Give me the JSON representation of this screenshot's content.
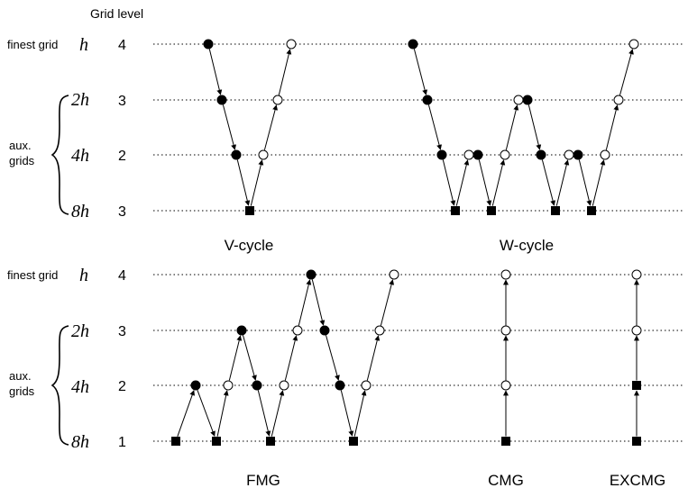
{
  "header": {
    "grid_level_label": "Grid level"
  },
  "labels": {
    "finest_grid": "finest grid",
    "aux_grids": [
      "aux.",
      "grids"
    ],
    "spacings": [
      "h",
      "2h",
      "4h",
      "8h"
    ],
    "levels": [
      "4",
      "3",
      "2",
      "1"
    ]
  },
  "cycles": [
    {
      "name": "V-cycle",
      "points": [
        [
          4,
          "pre"
        ],
        [
          3,
          "pre"
        ],
        [
          2,
          "pre"
        ],
        [
          1,
          "coarse"
        ],
        [
          2,
          "post"
        ],
        [
          3,
          "post"
        ],
        [
          4,
          "post"
        ]
      ]
    },
    {
      "name": "W-cycle",
      "points": [
        [
          4,
          "pre"
        ],
        [
          3,
          "pre"
        ],
        [
          2,
          "pre"
        ],
        [
          1,
          "coarse"
        ],
        [
          2,
          "post"
        ],
        [
          2,
          "pre"
        ],
        [
          1,
          "coarse"
        ],
        [
          2,
          "post"
        ],
        [
          3,
          "post"
        ],
        [
          3,
          "pre"
        ],
        [
          2,
          "pre"
        ],
        [
          1,
          "coarse"
        ],
        [
          2,
          "post"
        ],
        [
          2,
          "pre"
        ],
        [
          1,
          "coarse"
        ],
        [
          2,
          "post"
        ],
        [
          3,
          "post"
        ],
        [
          4,
          "post"
        ]
      ]
    },
    {
      "name": "FMG",
      "points": [
        [
          1,
          "coarse"
        ],
        [
          2,
          "pre"
        ],
        [
          1,
          "coarse"
        ],
        [
          2,
          "post"
        ],
        [
          3,
          "pre"
        ],
        [
          2,
          "pre"
        ],
        [
          1,
          "coarse"
        ],
        [
          2,
          "post"
        ],
        [
          3,
          "post"
        ],
        [
          4,
          "pre"
        ],
        [
          3,
          "pre"
        ],
        [
          2,
          "pre"
        ],
        [
          1,
          "coarse"
        ],
        [
          2,
          "post"
        ],
        [
          3,
          "post"
        ],
        [
          4,
          "post"
        ]
      ]
    },
    {
      "name": "CMG",
      "points": [
        [
          1,
          "coarse"
        ],
        [
          2,
          "post"
        ],
        [
          3,
          "post"
        ],
        [
          4,
          "post"
        ]
      ]
    },
    {
      "name": "EXCMG",
      "points": [
        [
          1,
          "coarse"
        ],
        [
          2,
          "coarse"
        ],
        [
          3,
          "post"
        ],
        [
          4,
          "post"
        ]
      ]
    }
  ],
  "legend_semantics": {
    "pre": "filled circle",
    "post": "open circle",
    "coarse": "filled square"
  },
  "colors": {
    "ink": "#000000",
    "open_fill": "#ffffff"
  }
}
